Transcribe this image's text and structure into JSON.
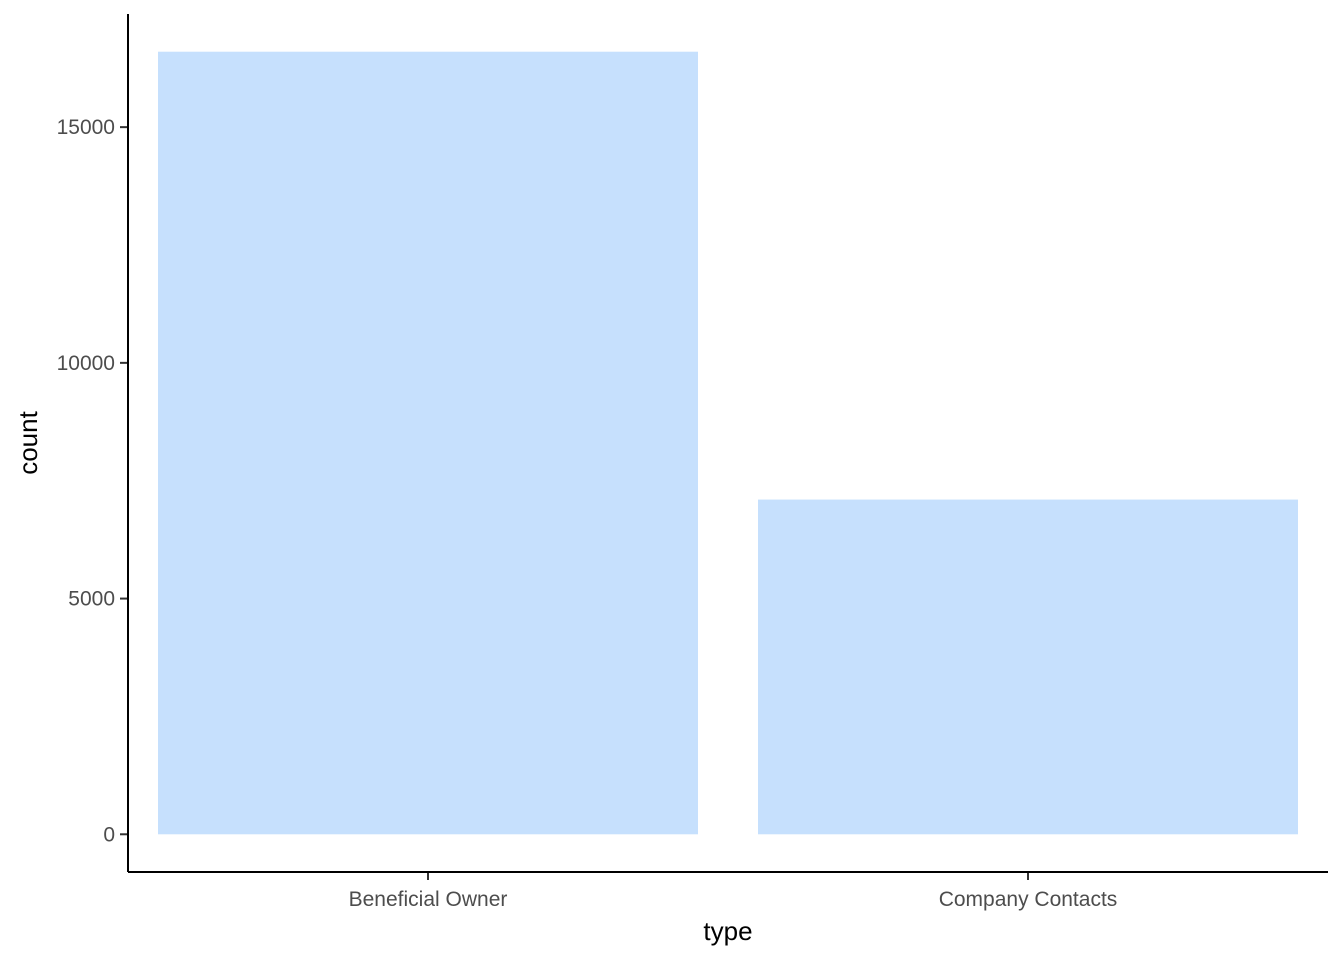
{
  "chart_data": {
    "type": "bar",
    "categories": [
      "Beneficial Owner",
      "Company Contacts"
    ],
    "values": [
      16600,
      7100
    ],
    "xlabel": "type",
    "ylabel": "count",
    "ylim": [
      -800,
      17400
    ],
    "yticks": [
      0,
      5000,
      10000,
      15000
    ],
    "ytick_labels": [
      "0",
      "5000",
      "10000",
      "15000"
    ],
    "grid": false,
    "legend": "none",
    "bar_color": "#c6e0fd",
    "axis_color": "#000000",
    "tick_label_color": "#4d4d4d"
  }
}
